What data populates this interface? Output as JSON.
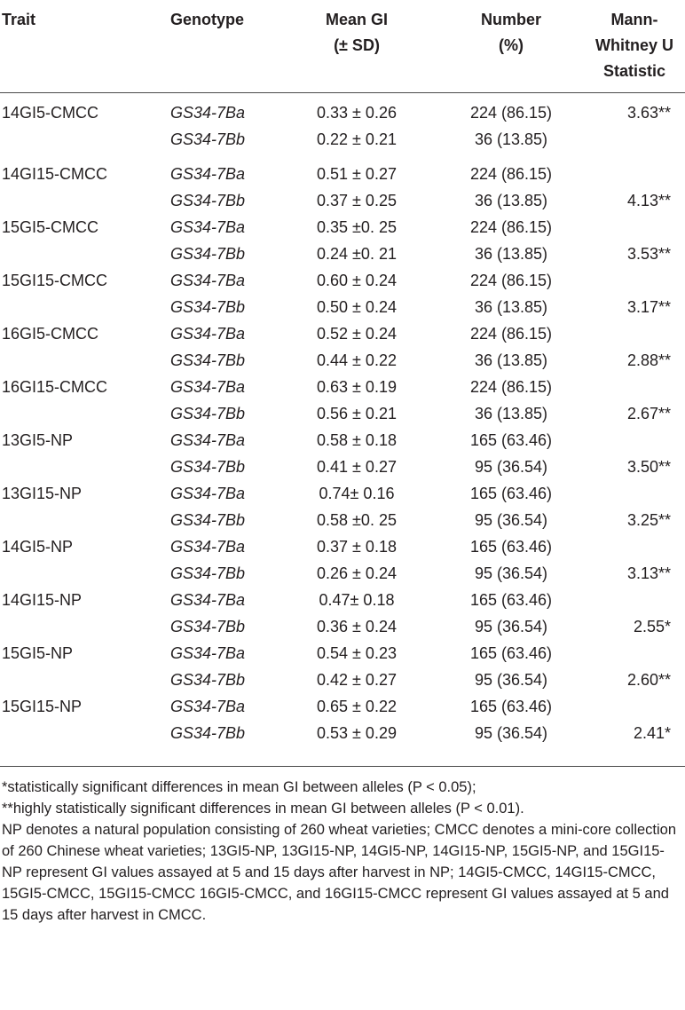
{
  "table": {
    "headers": {
      "trait": "Trait",
      "genotype": "Genotype",
      "mean_gi": [
        "Mean GI",
        "(± SD)"
      ],
      "number": [
        "Number",
        "(%)"
      ],
      "mann_whitney": [
        "Mann-",
        "Whitney U",
        "Statistic"
      ]
    },
    "rows": [
      {
        "trait": "14GI5-CMCC",
        "genotype": "GS34-7Ba",
        "mean": "0.33 ± 0.26",
        "number": "224 (86.15)",
        "u": "3.63**"
      },
      {
        "trait": "",
        "genotype": "GS34-7Bb",
        "mean": "0.22 ± 0.21",
        "number": "36 (13.85)",
        "u": ""
      },
      {
        "trait": "14GI15-CMCC",
        "genotype": "GS34-7Ba",
        "mean": "0.51 ± 0.27",
        "number": "224 (86.15)",
        "u": ""
      },
      {
        "trait": "",
        "genotype": "GS34-7Bb",
        "mean": "0.37 ± 0.25",
        "number": "36 (13.85)",
        "u": "4.13**"
      },
      {
        "trait": "15GI5-CMCC",
        "genotype": "GS34-7Ba",
        "mean": "0.35 ±0. 25",
        "number": "224 (86.15)",
        "u": ""
      },
      {
        "trait": "",
        "genotype": "GS34-7Bb",
        "mean": "0.24 ±0. 21",
        "number": "36 (13.85)",
        "u": "3.53**"
      },
      {
        "trait": "15GI15-CMCC",
        "genotype": "GS34-7Ba",
        "mean": "0.60 ± 0.24",
        "number": "224 (86.15)",
        "u": ""
      },
      {
        "trait": "",
        "genotype": "GS34-7Bb",
        "mean": "0.50 ± 0.24",
        "number": "36 (13.85)",
        "u": "3.17**"
      },
      {
        "trait": "16GI5-CMCC",
        "genotype": "GS34-7Ba",
        "mean": "0.52 ± 0.24",
        "number": "224 (86.15)",
        "u": ""
      },
      {
        "trait": "",
        "genotype": "GS34-7Bb",
        "mean": "0.44 ± 0.22",
        "number": "36 (13.85)",
        "u": "2.88**"
      },
      {
        "trait": "16GI15-CMCC",
        "genotype": "GS34-7Ba",
        "mean": "0.63 ± 0.19",
        "number": "224 (86.15)",
        "u": ""
      },
      {
        "trait": "",
        "genotype": "GS34-7Bb",
        "mean": "0.56 ± 0.21",
        "number": "36 (13.85)",
        "u": "2.67**"
      },
      {
        "trait": "13GI5-NP",
        "genotype": "GS34-7Ba",
        "mean": "0.58 ± 0.18",
        "number": "165 (63.46)",
        "u": ""
      },
      {
        "trait": "",
        "genotype": "GS34-7Bb",
        "mean": "0.41 ± 0.27",
        "number": "95 (36.54)",
        "u": "3.50**"
      },
      {
        "trait": "13GI15-NP",
        "genotype": "GS34-7Ba",
        "mean": "0.74± 0.16",
        "number": "165 (63.46)",
        "u": ""
      },
      {
        "trait": "",
        "genotype": "GS34-7Bb",
        "mean": "0.58 ±0. 25",
        "number": "95 (36.54)",
        "u": "3.25**"
      },
      {
        "trait": "14GI5-NP",
        "genotype": "GS34-7Ba",
        "mean": "0.37 ± 0.18",
        "number": "165 (63.46)",
        "u": ""
      },
      {
        "trait": "",
        "genotype": "GS34-7Bb",
        "mean": "0.26 ± 0.24",
        "number": "95 (36.54)",
        "u": "3.13**"
      },
      {
        "trait": "14GI15-NP",
        "genotype": "GS34-7Ba",
        "mean": "0.47± 0.18",
        "number": "165 (63.46)",
        "u": ""
      },
      {
        "trait": "",
        "genotype": "GS34-7Bb",
        "mean": "0.36 ± 0.24",
        "number": "95 (36.54)",
        "u": "2.55*"
      },
      {
        "trait": "15GI5-NP",
        "genotype": "GS34-7Ba",
        "mean": "0.54 ± 0.23",
        "number": "165 (63.46)",
        "u": ""
      },
      {
        "trait": "",
        "genotype": "GS34-7Bb",
        "mean": "0.42 ± 0.27",
        "number": "95 (36.54)",
        "u": "2.60**"
      },
      {
        "trait": "15GI15-NP",
        "genotype": "GS34-7Ba",
        "mean": "0.65 ± 0.22",
        "number": "165 (63.46)",
        "u": ""
      },
      {
        "trait": "",
        "genotype": "GS34-7Bb",
        "mean": "0.53 ± 0.29",
        "number": "95 (36.54)",
        "u": "2.41*"
      }
    ]
  },
  "footnotes": {
    "significant": "*statistically significant differences in mean GI between alleles (P < 0.05);",
    "highly_significant": "**highly statistically significant differences in mean GI between alleles (P < 0.01).",
    "description": "NP denotes a natural population consisting of 260 wheat varieties; CMCC denotes a mini-core collection of 260 Chinese wheat varieties; 13GI5-NP, 13GI15-NP, 14GI5-NP, 14GI15-NP, 15GI5-NP, and 15GI15-NP represent GI values assayed at 5 and 15 days after harvest in NP; 14GI5-CMCC, 14GI15-CMCC, 15GI5-CMCC, 15GI15-CMCC 16GI5-CMCC, and 16GI15-CMCC represent GI values assayed at 5 and 15 days after harvest in CMCC."
  }
}
